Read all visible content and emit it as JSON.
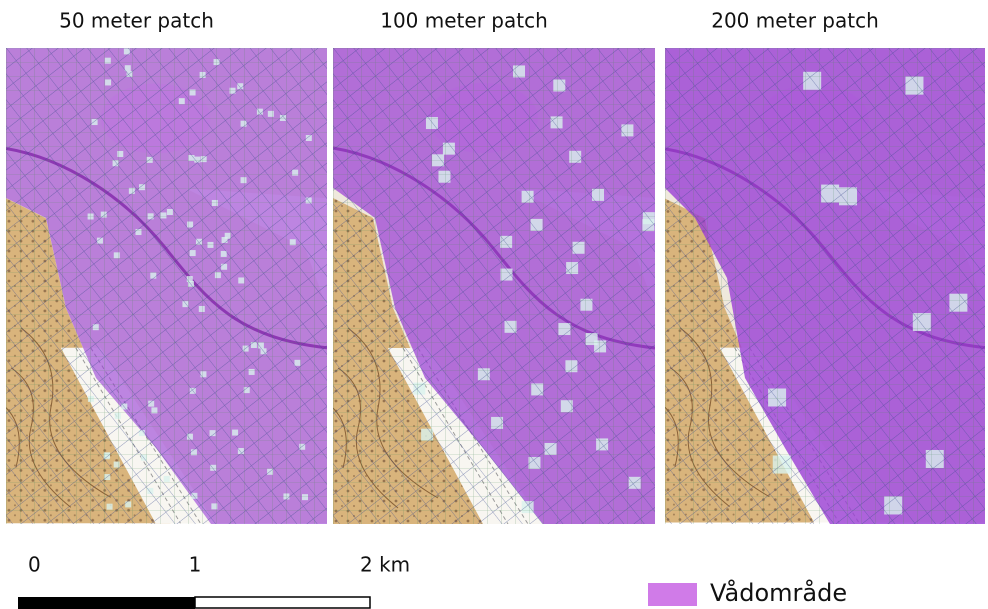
{
  "panels": [
    {
      "title": "50 meter patch"
    },
    {
      "title": "100 meter patch"
    },
    {
      "title": "200 meter patch"
    }
  ],
  "scale_bar": {
    "labels": [
      "0",
      "1",
      "2 km"
    ]
  },
  "legend": {
    "label": "Vådområde"
  }
}
